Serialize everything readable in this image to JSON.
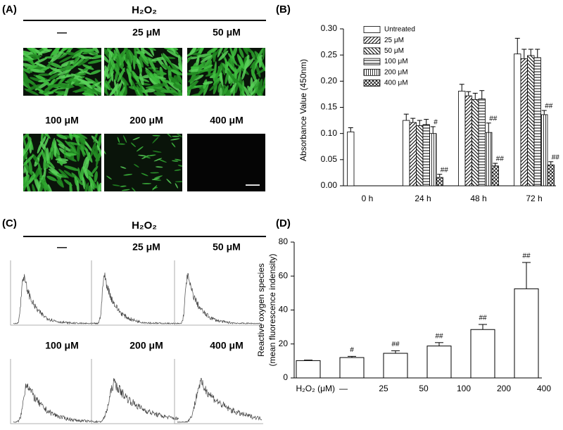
{
  "panel_a": {
    "label": "(A)",
    "header": "H₂O₂",
    "conditions": [
      "—",
      "25 μM",
      "50 μM",
      "100 μM",
      "200 μM",
      "400 μM"
    ]
  },
  "panel_c": {
    "label": "(C)",
    "header": "H₂O₂",
    "conditions": [
      "—",
      "25 μM",
      "50 μM",
      "100 μM",
      "200 μM",
      "400 μM"
    ]
  },
  "chart_data": [
    {
      "type": "grouped_bar",
      "label": "(B)",
      "ylabel": "Absorbance Value (450nm)",
      "categories": [
        "0 h",
        "24 h",
        "48 h",
        "72 h"
      ],
      "series": [
        {
          "name": "Untreated",
          "color": "#ffffff",
          "pattern": "none",
          "values": [
            0.103,
            0.125,
            0.181,
            0.252
          ],
          "errors": [
            0.008,
            0.012,
            0.013,
            0.03
          ]
        },
        {
          "name": "25 μM",
          "color": "#ffffff",
          "pattern": "diag",
          "values": [
            null,
            0.121,
            0.172,
            0.243
          ],
          "errors": [
            null,
            0.008,
            0.008,
            0.018
          ]
        },
        {
          "name": "50 μM",
          "color": "#ffffff",
          "pattern": "antidiag",
          "values": [
            null,
            0.115,
            0.165,
            0.249
          ],
          "errors": [
            null,
            0.01,
            0.012,
            0.012
          ]
        },
        {
          "name": "100 μM",
          "color": "#ffffff",
          "pattern": "horizontal",
          "values": [
            null,
            0.117,
            0.166,
            0.245
          ],
          "errors": [
            null,
            0.01,
            0.016,
            0.016
          ]
        },
        {
          "name": "200 μM",
          "color": "#ffffff",
          "pattern": "vertical",
          "values": [
            null,
            0.1,
            0.102,
            0.136
          ],
          "errors": [
            null,
            0.013,
            0.018,
            0.008
          ],
          "annotations": [
            null,
            "#",
            "##",
            "##"
          ]
        },
        {
          "name": "400 μM",
          "color": "#ffffff",
          "pattern": "crosshatch",
          "values": [
            null,
            0.016,
            0.038,
            0.04
          ],
          "errors": [
            null,
            0.006,
            0.005,
            0.006
          ],
          "annotations": [
            null,
            "##",
            "##",
            "##"
          ]
        }
      ],
      "ylim": [
        0,
        0.3
      ],
      "yticks": [
        {
          "value": 0,
          "label": "0.00"
        },
        {
          "value": 0.05,
          "label": "0.05"
        },
        {
          "value": 0.1,
          "label": "0.10"
        },
        {
          "value": 0.15,
          "label": "0.15"
        },
        {
          "value": 0.2,
          "label": "0.20"
        },
        {
          "value": 0.25,
          "label": "0.25"
        },
        {
          "value": 0.3,
          "label": "0.30"
        }
      ]
    },
    {
      "type": "bar",
      "label": "(D)",
      "ylabel": [
        "Reactive oxygen species",
        "(mean fluorescence indensity)"
      ],
      "xlabel": "H₂O₂ (μM)",
      "categories": [
        "—",
        "25",
        "50",
        "100",
        "200",
        "400"
      ],
      "values": [
        10.2,
        12,
        14.5,
        18.8,
        28.5,
        52.5
      ],
      "errors": [
        0.3,
        0.7,
        1.5,
        2,
        3,
        15.5
      ],
      "annotations": [
        null,
        "#",
        "##",
        "##",
        "##",
        "##"
      ],
      "color": "#ffffff",
      "ylim": [
        0,
        80
      ],
      "yticks": [
        0,
        20,
        40,
        60,
        80
      ]
    }
  ]
}
